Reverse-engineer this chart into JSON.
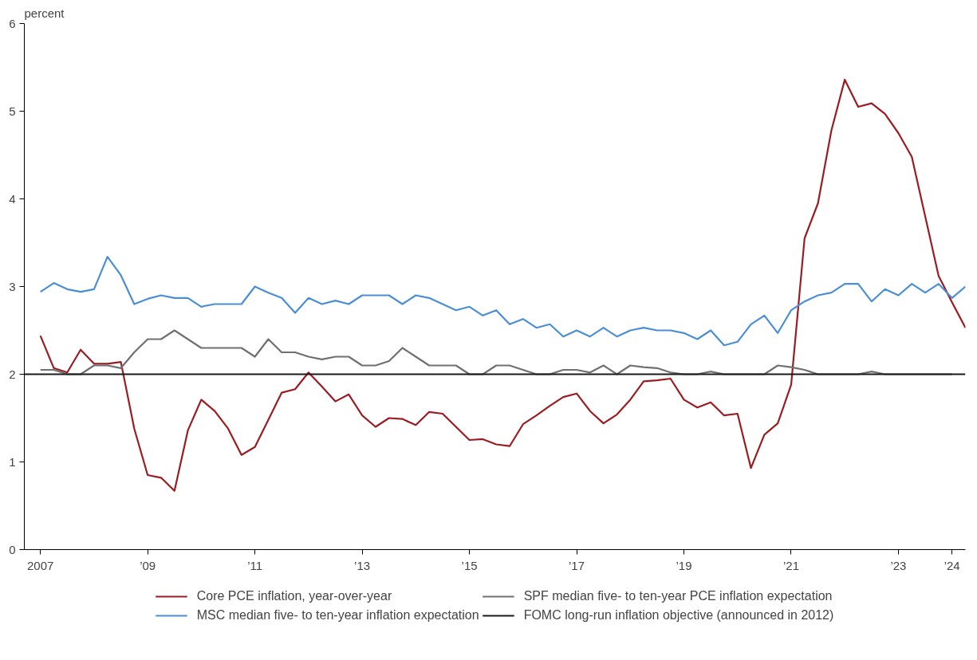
{
  "chart_data": {
    "type": "line",
    "ylabel": "percent",
    "xlim": [
      2006.7,
      2024.25
    ],
    "ylim": [
      0,
      6
    ],
    "xticks": [
      {
        "value": 2007,
        "label": "2007"
      },
      {
        "value": 2009,
        "label": "’09"
      },
      {
        "value": 2011,
        "label": "’11"
      },
      {
        "value": 2013,
        "label": "’13"
      },
      {
        "value": 2015,
        "label": "’15"
      },
      {
        "value": 2017,
        "label": "’17"
      },
      {
        "value": 2019,
        "label": "’19"
      },
      {
        "value": 2021,
        "label": "’21"
      },
      {
        "value": 2023,
        "label": "’23"
      },
      {
        "value": 2024,
        "label": "’24"
      }
    ],
    "yticks": [
      0,
      1,
      2,
      3,
      4,
      5,
      6
    ],
    "x": [
      2007,
      2007.25,
      2007.5,
      2007.75,
      2008,
      2008.25,
      2008.5,
      2008.75,
      2009,
      2009.25,
      2009.5,
      2009.75,
      2010,
      2010.25,
      2010.5,
      2010.75,
      2011,
      2011.25,
      2011.5,
      2011.75,
      2012,
      2012.25,
      2012.5,
      2012.75,
      2013,
      2013.25,
      2013.5,
      2013.75,
      2014,
      2014.25,
      2014.5,
      2014.75,
      2015,
      2015.25,
      2015.5,
      2015.75,
      2016,
      2016.25,
      2016.5,
      2016.75,
      2017,
      2017.25,
      2017.5,
      2017.75,
      2018,
      2018.25,
      2018.5,
      2018.75,
      2019,
      2019.25,
      2019.5,
      2019.75,
      2020,
      2020.25,
      2020.5,
      2020.75,
      2021,
      2021.25,
      2021.5,
      2021.75,
      2022,
      2022.25,
      2022.5,
      2022.75,
      2023,
      2023.25,
      2023.5,
      2023.75,
      2024,
      2024.25
    ],
    "grid": false,
    "legend": "bottom",
    "line_style": "solid",
    "marker": "none",
    "series": [
      {
        "name": "Core PCE inflation, year-over-year",
        "color": "#9b1c22",
        "values": [
          2.44,
          2.07,
          2.02,
          2.28,
          2.12,
          2.12,
          2.14,
          1.38,
          0.85,
          0.82,
          0.67,
          1.36,
          1.71,
          1.58,
          1.38,
          1.08,
          1.17,
          1.48,
          1.79,
          1.83,
          2.02,
          1.86,
          1.69,
          1.77,
          1.53,
          1.4,
          1.5,
          1.49,
          1.42,
          1.57,
          1.55,
          1.4,
          1.25,
          1.26,
          1.2,
          1.18,
          1.43,
          1.53,
          1.64,
          1.74,
          1.78,
          1.58,
          1.44,
          1.54,
          1.71,
          1.92,
          1.93,
          1.95,
          1.71,
          1.62,
          1.68,
          1.53,
          1.55,
          0.93,
          1.31,
          1.44,
          1.88,
          3.55,
          3.95,
          4.78,
          5.36,
          5.05,
          5.09,
          4.97,
          4.75,
          4.48,
          3.8,
          3.12,
          2.82,
          2.53
        ]
      },
      {
        "name": "MSC median five- to ten-year inflation expectation",
        "color": "#4a8fd6",
        "values": [
          2.94,
          3.04,
          2.97,
          2.94,
          2.97,
          3.34,
          3.13,
          2.8,
          2.86,
          2.9,
          2.87,
          2.87,
          2.77,
          2.8,
          2.8,
          2.8,
          3.0,
          2.93,
          2.87,
          2.7,
          2.87,
          2.8,
          2.84,
          2.8,
          2.9,
          2.9,
          2.9,
          2.8,
          2.9,
          2.87,
          2.8,
          2.73,
          2.77,
          2.67,
          2.73,
          2.57,
          2.63,
          2.53,
          2.57,
          2.43,
          2.5,
          2.43,
          2.53,
          2.43,
          2.5,
          2.53,
          2.5,
          2.5,
          2.47,
          2.4,
          2.5,
          2.33,
          2.37,
          2.57,
          2.67,
          2.47,
          2.73,
          2.83,
          2.9,
          2.93,
          3.03,
          3.03,
          2.83,
          2.97,
          2.9,
          3.03,
          2.93,
          3.03,
          2.87,
          3.0
        ]
      },
      {
        "name": "SPF median five- to ten-year PCE inflation expectation",
        "color": "#707070",
        "x": [
          2007,
          2007.25,
          2007.5,
          2007.75,
          2008,
          2008.25,
          2008.5,
          2008.75,
          2009,
          2009.25,
          2009.5,
          2009.75,
          2010,
          2010.25,
          2010.5,
          2010.75,
          2011,
          2011.25,
          2011.5,
          2011.75,
          2012,
          2012.25,
          2012.5,
          2012.75,
          2013,
          2013.25,
          2013.5,
          2013.75,
          2014,
          2014.25,
          2014.5,
          2014.75,
          2015,
          2015.25,
          2015.5,
          2015.75,
          2016,
          2016.25,
          2016.5,
          2016.75,
          2017,
          2017.25,
          2017.5,
          2017.75,
          2018,
          2018.25,
          2018.5,
          2018.75,
          2019,
          2019.25,
          2019.5,
          2019.75,
          2020,
          2020.25,
          2020.5,
          2020.75,
          2021,
          2021.25,
          2021.5,
          2021.75,
          2022,
          2022.25,
          2022.5,
          2022.75,
          2023,
          2023.25,
          2023.5,
          2023.75,
          2024
        ],
        "values": [
          2.05,
          2.05,
          2.0,
          2.0,
          2.1,
          2.1,
          2.07,
          2.25,
          2.4,
          2.4,
          2.5,
          2.4,
          2.3,
          2.3,
          2.3,
          2.3,
          2.2,
          2.4,
          2.25,
          2.25,
          2.2,
          2.17,
          2.2,
          2.2,
          2.1,
          2.1,
          2.15,
          2.3,
          2.2,
          2.1,
          2.1,
          2.1,
          2.0,
          2.0,
          2.1,
          2.1,
          2.05,
          2.0,
          2.0,
          2.05,
          2.05,
          2.02,
          2.1,
          2.0,
          2.1,
          2.08,
          2.07,
          2.02,
          2.0,
          2.0,
          2.03,
          2.0,
          2.0,
          2.0,
          2.0,
          2.1,
          2.08,
          2.05,
          2.0,
          2.0,
          2.0,
          2.0,
          2.03,
          2.0,
          2.0,
          2.0,
          2.0,
          2.0,
          2.0
        ]
      }
    ],
    "ref_lines": [
      {
        "axis": "y",
        "value": 2,
        "label": "FOMC long-run inflation objective (announced in 2012)",
        "color": "#1a1a1a"
      }
    ]
  }
}
